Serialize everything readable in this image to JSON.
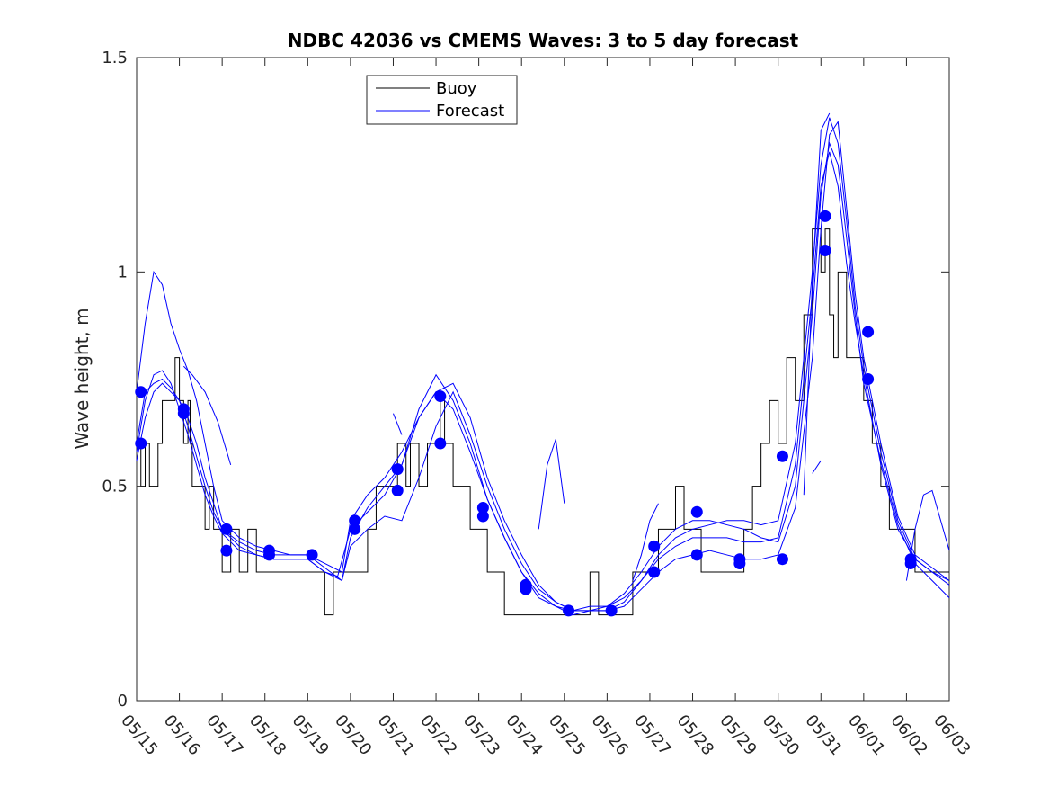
{
  "chart_data": {
    "type": "line",
    "title": "NDBC 42036 vs CMEMS Waves: 3 to 5 day forecast",
    "xlabel": "",
    "ylabel": "Wave height, m",
    "xlim": [
      0,
      19
    ],
    "ylim": [
      0,
      1.5
    ],
    "x_ticks": [
      0,
      1,
      2,
      3,
      4,
      5,
      6,
      7,
      8,
      9,
      10,
      11,
      12,
      13,
      14,
      15,
      16,
      17,
      18,
      19
    ],
    "x_tick_labels": [
      "05/15",
      "05/16",
      "05/17",
      "05/18",
      "05/19",
      "05/20",
      "05/21",
      "05/22",
      "05/23",
      "05/24",
      "05/25",
      "05/26",
      "05/27",
      "05/28",
      "05/29",
      "05/30",
      "05/31",
      "06/01",
      "06/02",
      "06/03"
    ],
    "y_ticks": [
      0,
      0.5,
      1,
      1.5
    ],
    "y_tick_labels": [
      "0",
      "0.5",
      "1",
      "1.5"
    ],
    "grid": false,
    "legend": {
      "position": "top-center",
      "entries": [
        "Buoy",
        "Forecast"
      ]
    },
    "colors": {
      "buoy": "#000000",
      "forecast": "#0000ff",
      "markers": "#0000ff"
    },
    "series": [
      {
        "name": "Buoy",
        "style": "step",
        "x": [
          0,
          0.1,
          0.2,
          0.3,
          0.5,
          0.6,
          0.8,
          0.9,
          1.0,
          1.1,
          1.2,
          1.25,
          1.3,
          1.5,
          1.6,
          1.7,
          1.8,
          1.9,
          2.0,
          2.1,
          2.2,
          2.4,
          2.5,
          2.6,
          2.8,
          3.0,
          3.2,
          3.4,
          3.6,
          3.8,
          4.0,
          4.2,
          4.4,
          4.6,
          4.8,
          5.0,
          5.2,
          5.4,
          5.6,
          5.8,
          6.0,
          6.1,
          6.2,
          6.3,
          6.4,
          6.5,
          6.6,
          6.8,
          7.0,
          7.1,
          7.2,
          7.4,
          7.6,
          7.8,
          8.0,
          8.2,
          8.4,
          8.6,
          8.8,
          9.0,
          9.2,
          9.4,
          9.6,
          9.8,
          10.0,
          10.2,
          10.4,
          10.6,
          10.8,
          11.0,
          11.2,
          11.4,
          11.6,
          11.8,
          12.0,
          12.2,
          12.4,
          12.6,
          12.8,
          13.0,
          13.2,
          13.4,
          13.6,
          13.8,
          14.0,
          14.2,
          14.4,
          14.6,
          14.8,
          15.0,
          15.2,
          15.4,
          15.6,
          15.8,
          16.0,
          16.1,
          16.2,
          16.3,
          16.4,
          16.6,
          16.8,
          17.0,
          17.2,
          17.4,
          17.6,
          17.8,
          18.0,
          18.2,
          18.4,
          18.6,
          18.8,
          19.0
        ],
        "y": [
          0.6,
          0.5,
          0.6,
          0.5,
          0.6,
          0.7,
          0.7,
          0.8,
          0.7,
          0.6,
          0.7,
          0.6,
          0.5,
          0.5,
          0.4,
          0.5,
          0.4,
          0.4,
          0.3,
          0.3,
          0.4,
          0.3,
          0.3,
          0.4,
          0.3,
          0.3,
          0.3,
          0.3,
          0.3,
          0.3,
          0.3,
          0.3,
          0.2,
          0.3,
          0.3,
          0.3,
          0.3,
          0.4,
          0.5,
          0.5,
          0.5,
          0.6,
          0.6,
          0.5,
          0.6,
          0.6,
          0.5,
          0.6,
          0.6,
          0.7,
          0.6,
          0.5,
          0.5,
          0.4,
          0.4,
          0.3,
          0.3,
          0.2,
          0.2,
          0.2,
          0.2,
          0.2,
          0.2,
          0.2,
          0.2,
          0.2,
          0.2,
          0.3,
          0.2,
          0.2,
          0.2,
          0.2,
          0.3,
          0.3,
          0.3,
          0.4,
          0.4,
          0.5,
          0.4,
          0.4,
          0.3,
          0.3,
          0.3,
          0.3,
          0.3,
          0.4,
          0.5,
          0.6,
          0.7,
          0.6,
          0.8,
          0.7,
          0.9,
          1.1,
          1.0,
          1.1,
          0.9,
          0.8,
          1.0,
          0.8,
          0.8,
          0.7,
          0.6,
          0.5,
          0.4,
          0.4,
          0.4,
          0.3,
          0.3,
          0.3,
          0.3,
          0.3
        ]
      },
      {
        "name": "Forecast",
        "x": [
          0,
          0.2,
          0.4,
          0.6,
          0.8,
          1.0,
          1.2,
          1.4,
          1.6,
          1.8,
          2.0,
          2.4,
          2.8,
          3.2,
          3.6,
          4.0,
          4.4,
          4.7,
          5.0,
          5.4,
          5.8,
          6.2,
          6.6,
          7.0,
          7.4,
          7.8,
          8.2,
          8.6,
          9.0,
          9.4,
          9.8,
          10.2,
          10.6,
          11.0,
          11.4,
          11.8,
          12.2,
          12.6,
          13.0,
          13.4,
          13.8,
          14.2,
          14.6,
          15.0,
          15.4,
          15.8,
          16.0,
          16.2,
          16.4,
          16.6,
          16.8,
          17.0,
          17.4,
          17.8,
          18.2,
          18.6,
          19.0
        ],
        "y": [
          0.58,
          0.7,
          0.76,
          0.77,
          0.74,
          0.68,
          0.62,
          0.55,
          0.48,
          0.43,
          0.39,
          0.35,
          0.34,
          0.33,
          0.33,
          0.33,
          0.3,
          0.29,
          0.4,
          0.44,
          0.48,
          0.55,
          0.66,
          0.72,
          0.68,
          0.58,
          0.47,
          0.38,
          0.3,
          0.24,
          0.22,
          0.21,
          0.22,
          0.22,
          0.24,
          0.28,
          0.33,
          0.36,
          0.38,
          0.38,
          0.38,
          0.37,
          0.37,
          0.38,
          0.55,
          0.95,
          1.2,
          1.28,
          1.2,
          1.02,
          0.88,
          0.76,
          0.55,
          0.4,
          0.33,
          0.3,
          0.27
        ]
      },
      {
        "name": "",
        "x": [
          0,
          0.2,
          0.4,
          0.6,
          0.8,
          1.0,
          1.2,
          1.4,
          1.6,
          1.8,
          2.0,
          2.4,
          2.8,
          3.2,
          3.6,
          4.0,
          4.4,
          4.8,
          5.0,
          5.4,
          5.8,
          6.2,
          6.6,
          7.0,
          7.4,
          7.8,
          8.2,
          8.6,
          9.0,
          9.4,
          9.8,
          10.2,
          10.6,
          11.0,
          11.4,
          11.8,
          12.2,
          12.6,
          13.0,
          13.4,
          13.8,
          14.2,
          14.6,
          15.0,
          15.4,
          15.8,
          16.0,
          16.2,
          16.4,
          16.6,
          16.8,
          17.0,
          17.4,
          17.8,
          18.2,
          18.6,
          19.0
        ],
        "y": [
          0.6,
          0.72,
          0.74,
          0.75,
          0.73,
          0.7,
          0.64,
          0.57,
          0.5,
          0.44,
          0.4,
          0.37,
          0.35,
          0.34,
          0.34,
          0.34,
          0.31,
          0.28,
          0.36,
          0.4,
          0.43,
          0.42,
          0.52,
          0.64,
          0.72,
          0.62,
          0.5,
          0.4,
          0.32,
          0.26,
          0.23,
          0.21,
          0.21,
          0.21,
          0.22,
          0.26,
          0.3,
          0.33,
          0.34,
          0.35,
          0.34,
          0.33,
          0.33,
          0.34,
          0.45,
          0.8,
          1.1,
          1.32,
          1.35,
          1.15,
          0.95,
          0.8,
          0.6,
          0.43,
          0.34,
          0.31,
          0.28
        ]
      },
      {
        "name": "",
        "x": [
          0,
          0.2,
          0.4,
          0.6,
          0.8,
          1.0,
          1.2,
          1.4,
          1.6,
          1.8,
          2.0,
          2.4,
          2.8,
          3.2,
          3.6,
          4.0,
          4.4,
          4.8,
          5.0,
          5.4,
          5.8,
          6.2,
          6.6,
          7.0,
          7.4,
          7.8,
          8.2,
          8.6,
          9.0,
          9.4,
          9.8,
          10.2,
          10.6,
          11.0,
          11.4,
          11.8,
          12.2,
          12.6,
          13.0,
          13.4,
          13.8,
          14.2,
          14.6,
          15.0,
          15.4,
          15.8,
          16.0,
          16.2,
          16.4,
          16.6,
          16.8,
          17.0,
          17.4,
          17.8,
          18.2,
          18.6,
          19.0
        ],
        "y": [
          0.72,
          0.88,
          1.0,
          0.97,
          0.88,
          0.82,
          0.77,
          0.7,
          0.6,
          0.5,
          0.42,
          0.38,
          0.36,
          0.35,
          0.34,
          0.34,
          0.32,
          0.3,
          0.42,
          0.48,
          0.52,
          0.58,
          0.66,
          0.72,
          0.74,
          0.66,
          0.52,
          0.42,
          0.34,
          0.27,
          0.23,
          0.21,
          0.21,
          0.21,
          0.23,
          0.28,
          0.34,
          0.38,
          0.4,
          0.41,
          0.42,
          0.42,
          0.41,
          0.42,
          0.6,
          1.0,
          1.25,
          1.36,
          1.3,
          1.12,
          0.92,
          0.78,
          0.58,
          0.42,
          0.33,
          0.3,
          0.28
        ]
      },
      {
        "name": "",
        "x": [
          0,
          0.2,
          0.4,
          0.6,
          0.8,
          1.0,
          1.2,
          1.4,
          1.6,
          1.8,
          2.0,
          2.4,
          2.8,
          3.2,
          3.6,
          4.0,
          4.4,
          4.8,
          5.0,
          5.4,
          5.8,
          6.2,
          6.6,
          7.0,
          7.4,
          7.8,
          8.2,
          8.6,
          9.0,
          9.4,
          9.8,
          10.2,
          10.6,
          11.0,
          11.4,
          11.8,
          12.2,
          12.6,
          13.0,
          13.4,
          13.8,
          14.2,
          14.6,
          15.0,
          15.4,
          15.8,
          16.0,
          16.2,
          16.4,
          16.6,
          16.8,
          17.0,
          17.4,
          17.8,
          18.2,
          18.6,
          19.0
        ],
        "y": [
          0.56,
          0.66,
          0.72,
          0.74,
          0.72,
          0.7,
          0.66,
          0.6,
          0.52,
          0.46,
          0.4,
          0.36,
          0.34,
          0.33,
          0.33,
          0.33,
          0.3,
          0.28,
          0.38,
          0.45,
          0.5,
          0.55,
          0.68,
          0.76,
          0.7,
          0.6,
          0.47,
          0.38,
          0.3,
          0.25,
          0.22,
          0.2,
          0.21,
          0.22,
          0.25,
          0.3,
          0.36,
          0.4,
          0.42,
          0.42,
          0.41,
          0.4,
          0.38,
          0.37,
          0.5,
          0.9,
          1.18,
          1.3,
          1.25,
          1.08,
          0.9,
          0.74,
          0.56,
          0.41,
          0.32,
          0.28,
          0.24
        ]
      },
      {
        "name": "",
        "x": [
          1.1,
          1.3,
          1.6,
          1.9,
          2.2
        ],
        "y": [
          0.78,
          0.76,
          0.72,
          0.65,
          0.55
        ]
      },
      {
        "name": "",
        "x": [
          6.0,
          6.2
        ],
        "y": [
          0.67,
          0.62
        ]
      },
      {
        "name": "",
        "x": [
          9.4,
          9.6,
          9.8,
          10.0
        ],
        "y": [
          0.4,
          0.55,
          0.61,
          0.46
        ]
      },
      {
        "name": "",
        "x": [
          11.6,
          11.8,
          12.0,
          12.2
        ],
        "y": [
          0.28,
          0.34,
          0.42,
          0.46
        ]
      },
      {
        "name": "",
        "x": [
          15.8,
          16.0
        ],
        "y": [
          0.53,
          0.56
        ]
      },
      {
        "name": "",
        "x": [
          18.0,
          18.2,
          18.4,
          18.6,
          18.8,
          19.0
        ],
        "y": [
          0.28,
          0.4,
          0.48,
          0.49,
          0.42,
          0.35
        ]
      },
      {
        "name": "",
        "x": [
          15.6,
          15.8,
          16.0,
          16.2
        ],
        "y": [
          0.48,
          0.98,
          1.33,
          1.37
        ]
      }
    ],
    "markers": {
      "x": [
        0.1,
        0.1,
        1.1,
        1.1,
        2.1,
        2.1,
        3.1,
        3.1,
        4.1,
        5.1,
        5.1,
        6.1,
        6.1,
        7.1,
        7.1,
        8.1,
        8.1,
        9.1,
        9.1,
        10.1,
        11.1,
        12.1,
        12.1,
        13.1,
        13.1,
        14.1,
        14.1,
        15.1,
        15.1,
        16.1,
        16.1,
        17.1,
        17.1,
        18.1,
        18.1
      ],
      "y": [
        0.72,
        0.6,
        0.68,
        0.67,
        0.4,
        0.35,
        0.35,
        0.34,
        0.34,
        0.42,
        0.4,
        0.54,
        0.49,
        0.71,
        0.6,
        0.45,
        0.43,
        0.27,
        0.26,
        0.21,
        0.21,
        0.36,
        0.3,
        0.44,
        0.34,
        0.33,
        0.32,
        0.57,
        0.33,
        1.13,
        1.05,
        0.86,
        0.75,
        0.33,
        0.32
      ]
    }
  }
}
